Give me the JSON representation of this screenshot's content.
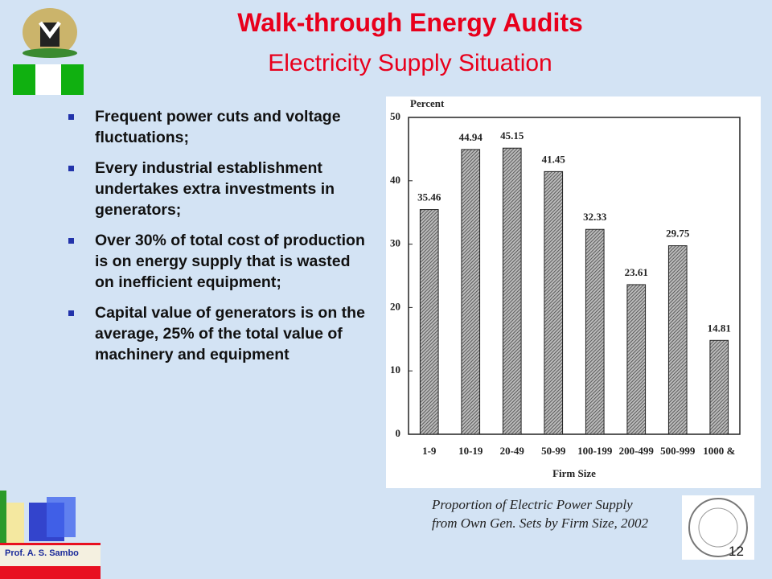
{
  "header": {
    "title": "Walk-through Energy Audits",
    "subtitle": "Electricity Supply Situation"
  },
  "bullets": [
    "Frequent power cuts and voltage fluctuations;",
    "Every industrial establishment undertakes extra investments in generators;",
    "Over 30% of total cost of production is on energy supply that is wasted on inefficient equipment;",
    "Capital value of generators is on the average, 25% of the total value of machinery and equipment"
  ],
  "chart_data": {
    "type": "bar",
    "y_label": "Percent",
    "x_label": "Firm Size",
    "categories": [
      "1-9",
      "10-19",
      "20-49",
      "50-99",
      "100-199",
      "200-499",
      "500-999",
      "1000 &"
    ],
    "values": [
      35.46,
      44.94,
      45.15,
      41.45,
      32.33,
      23.61,
      29.75,
      14.81
    ],
    "ylim": [
      0,
      50
    ],
    "yticks": [
      0,
      10,
      20,
      30,
      40,
      50
    ],
    "color": "#444444"
  },
  "caption": "Proportion of Electric Power Supply from Own Gen. Sets by Firm Size, 2002",
  "footer": {
    "author": "Prof. A. S. Sambo",
    "page": 12
  }
}
